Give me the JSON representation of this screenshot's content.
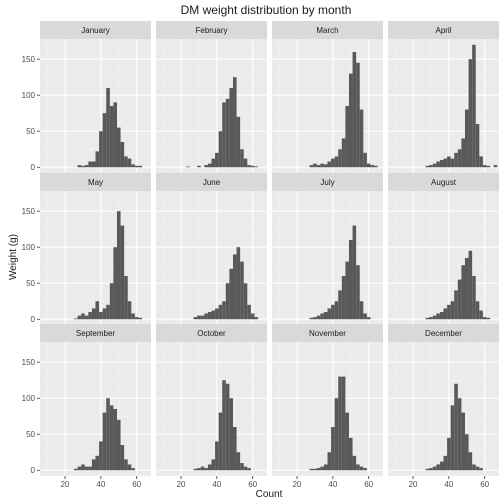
{
  "chart_data": {
    "type": "histogram-facets",
    "title": "DM weight distribution by month",
    "xlabel": "Count",
    "ylabel": "Weight (g)",
    "xlim": [
      6,
      68
    ],
    "ylim": [
      -8,
      178
    ],
    "x_ticks": [
      20,
      40,
      60
    ],
    "y_ticks": [
      0,
      50,
      100,
      150
    ],
    "grid": true,
    "colors": {
      "bar": "#595959",
      "panel": "#ebebeb",
      "strip": "#d9d9d9",
      "grid": "#ffffff"
    },
    "bins": [
      10,
      12,
      14,
      16,
      18,
      20,
      22,
      24,
      26,
      28,
      30,
      32,
      34,
      36,
      38,
      40,
      42,
      44,
      46,
      48,
      50,
      52,
      54,
      56,
      58,
      60,
      62,
      64,
      66
    ],
    "bin_width": 2,
    "panels": [
      {
        "month": "January",
        "counts": [
          0,
          0,
          0,
          0,
          0,
          0,
          0,
          0,
          0,
          3,
          2,
          3,
          8,
          8,
          22,
          50,
          75,
          110,
          85,
          90,
          55,
          35,
          15,
          12,
          4,
          2,
          2,
          0,
          0
        ]
      },
      {
        "month": "February",
        "counts": [
          0,
          0,
          0,
          0,
          0,
          0,
          0,
          1,
          0,
          0,
          2,
          0,
          3,
          5,
          12,
          20,
          50,
          90,
          95,
          110,
          125,
          70,
          25,
          12,
          3,
          2,
          1,
          0,
          0
        ]
      },
      {
        "month": "March",
        "counts": [
          0,
          0,
          0,
          0,
          0,
          0,
          0,
          0,
          0,
          3,
          5,
          3,
          5,
          4,
          8,
          12,
          15,
          25,
          40,
          85,
          130,
          160,
          145,
          80,
          20,
          5,
          3,
          2,
          0
        ]
      },
      {
        "month": "April",
        "counts": [
          0,
          0,
          0,
          0,
          0,
          0,
          0,
          0,
          0,
          2,
          3,
          5,
          8,
          10,
          12,
          15,
          12,
          20,
          25,
          40,
          80,
          150,
          170,
          60,
          15,
          3,
          2,
          0,
          3
        ]
      },
      {
        "month": "May",
        "counts": [
          0,
          0,
          0,
          0,
          0,
          0,
          0,
          0,
          1,
          5,
          8,
          5,
          10,
          15,
          25,
          10,
          15,
          20,
          50,
          100,
          150,
          130,
          60,
          25,
          8,
          3,
          2,
          0,
          0
        ]
      },
      {
        "month": "June",
        "counts": [
          0,
          0,
          0,
          0,
          0,
          0,
          0,
          0,
          0,
          3,
          5,
          5,
          8,
          10,
          12,
          15,
          20,
          25,
          50,
          70,
          90,
          100,
          80,
          50,
          20,
          8,
          3,
          0,
          0
        ]
      },
      {
        "month": "July",
        "counts": [
          0,
          0,
          0,
          0,
          0,
          0,
          0,
          0,
          0,
          2,
          3,
          5,
          8,
          10,
          15,
          20,
          25,
          40,
          60,
          80,
          110,
          130,
          75,
          25,
          8,
          3,
          0,
          0,
          0
        ]
      },
      {
        "month": "August",
        "counts": [
          0,
          0,
          0,
          0,
          0,
          0,
          0,
          0,
          0,
          2,
          3,
          5,
          8,
          10,
          15,
          20,
          25,
          40,
          55,
          75,
          85,
          95,
          60,
          25,
          12,
          3,
          2,
          0,
          0
        ]
      },
      {
        "month": "September",
        "counts": [
          0,
          0,
          0,
          0,
          0,
          0,
          0,
          0,
          2,
          5,
          8,
          5,
          5,
          15,
          20,
          40,
          80,
          100,
          90,
          85,
          70,
          35,
          15,
          8,
          3,
          0,
          0,
          0,
          0
        ]
      },
      {
        "month": "October",
        "counts": [
          0,
          0,
          0,
          0,
          0,
          0,
          0,
          0,
          0,
          2,
          3,
          5,
          3,
          8,
          15,
          40,
          80,
          125,
          120,
          100,
          60,
          25,
          10,
          5,
          3,
          0,
          0,
          0,
          0
        ]
      },
      {
        "month": "November",
        "counts": [
          0,
          0,
          0,
          0,
          0,
          0,
          0,
          0,
          0,
          2,
          2,
          3,
          5,
          8,
          25,
          60,
          100,
          130,
          130,
          80,
          45,
          20,
          8,
          5,
          3,
          0,
          0,
          0,
          0
        ]
      },
      {
        "month": "December",
        "counts": [
          0,
          0,
          0,
          0,
          0,
          0,
          0,
          0,
          0,
          2,
          3,
          5,
          8,
          12,
          20,
          45,
          90,
          120,
          100,
          80,
          50,
          25,
          8,
          5,
          3,
          0,
          0,
          0,
          0
        ]
      }
    ]
  }
}
